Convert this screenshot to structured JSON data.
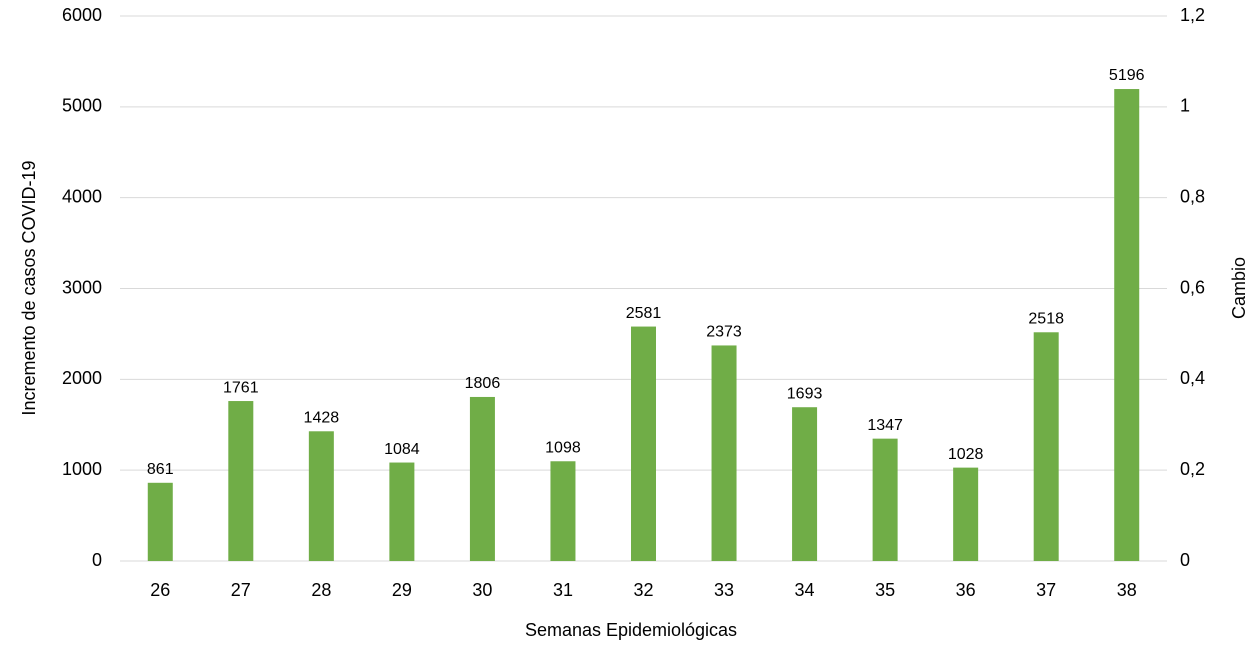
{
  "chart_data": {
    "type": "bar",
    "x_label": "Semanas Epidemiológicas",
    "y_label": "Incremento de casos COVID-19",
    "y2_label": "Cambio",
    "categories": [
      "26",
      "27",
      "28",
      "29",
      "30",
      "31",
      "32",
      "33",
      "34",
      "35",
      "36",
      "37",
      "38"
    ],
    "values": [
      861,
      1761,
      1428,
      1084,
      1806,
      1098,
      2581,
      2373,
      1693,
      1347,
      1028,
      2518,
      5196
    ],
    "color": "#70ad47",
    "ylim": [
      0,
      6000
    ],
    "yticks": [
      0,
      1000,
      2000,
      3000,
      4000,
      5000,
      6000
    ],
    "y2lim": [
      0,
      1.2
    ],
    "y2ticks": [
      0,
      {
        "value": 0.2,
        "label": "0,2"
      },
      {
        "value": 0.4,
        "label": "0,4"
      },
      {
        "value": 0.6,
        "label": "0,6"
      },
      {
        "value": 0.8,
        "label": "0,8"
      },
      1,
      {
        "value": 1.2,
        "label": "1,2"
      }
    ],
    "grid": true
  }
}
